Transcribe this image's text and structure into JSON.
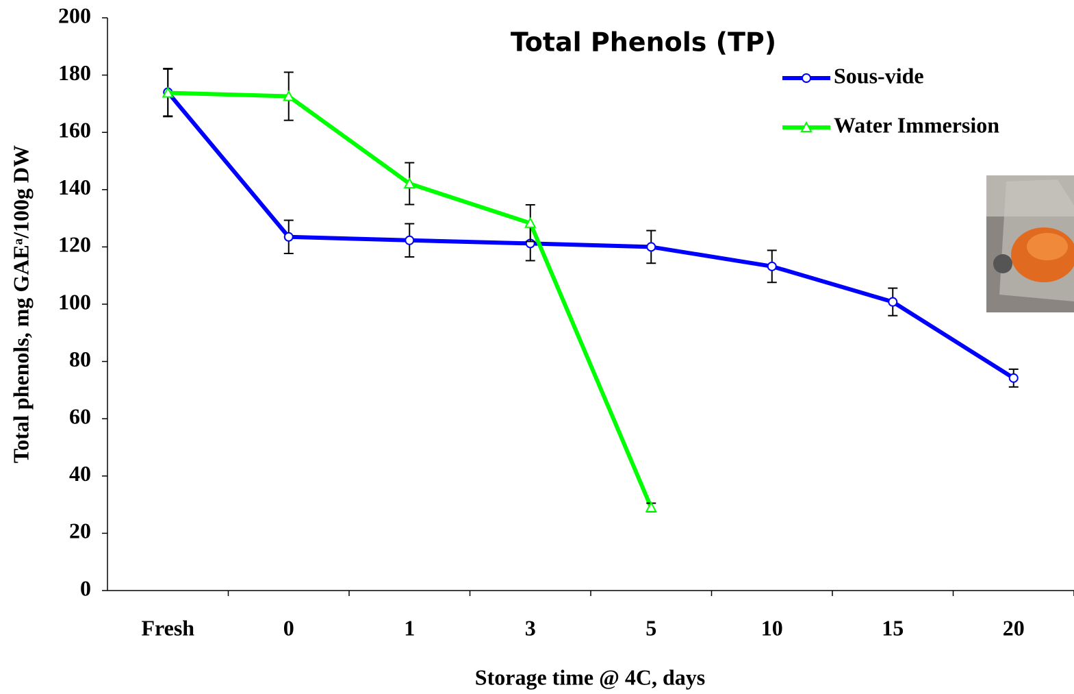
{
  "chart_data": {
    "type": "line",
    "title": "Total Phenols (TP)",
    "x_label": "Storage time @ 4C, days",
    "y_label": "Total phenols, mg GAEᵃ/100g DW",
    "categories": [
      "Fresh",
      "0",
      "1",
      "3",
      "5",
      "10",
      "15",
      "20"
    ],
    "series": [
      {
        "name": "Sous-vide",
        "color": "#0000ff",
        "marker": "circle",
        "values": [
          174,
          123.5,
          122.3,
          121.2,
          120,
          113.2,
          100.8,
          74.2
        ],
        "errors": [
          8.3,
          5.8,
          5.8,
          6,
          5.7,
          5.6,
          4.8,
          3.1
        ]
      },
      {
        "name": "Water Immersion",
        "color": "#00ff00",
        "marker": "triangle",
        "values": [
          173.8,
          172.6,
          142.1,
          128.3,
          29,
          null,
          null,
          null
        ],
        "errors": [
          8.3,
          8.4,
          7.3,
          6.4,
          1.5,
          null,
          null,
          null
        ]
      }
    ],
    "ylim": [
      0,
      200
    ],
    "yticks": [
      0,
      20,
      40,
      60,
      80,
      100,
      120,
      140,
      160,
      180,
      200
    ],
    "grid": false,
    "legend": "upper right"
  }
}
